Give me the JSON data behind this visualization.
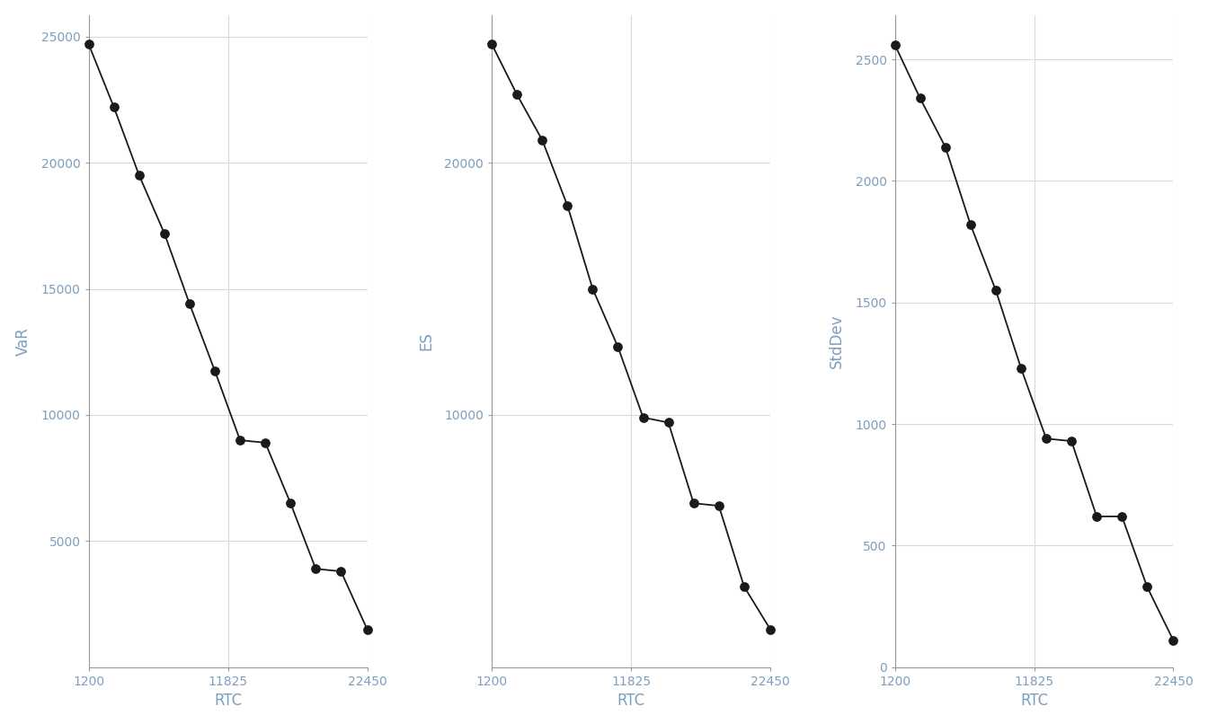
{
  "var_rtc": [
    1200,
    3125,
    5050,
    6975,
    8900,
    10825,
    12750,
    14675,
    16600,
    18525,
    20450,
    22450
  ],
  "var_y": [
    24700,
    22200,
    19500,
    17200,
    14400,
    11750,
    9000,
    8900,
    6500,
    3900,
    3800,
    1500
  ],
  "es_rtc": [
    1200,
    3125,
    5050,
    6975,
    8900,
    10825,
    12750,
    14675,
    16600,
    18525,
    20450,
    22450
  ],
  "es_y": [
    24700,
    22700,
    20900,
    18300,
    15000,
    12700,
    9900,
    9700,
    6500,
    6400,
    3200,
    1500
  ],
  "std_rtc": [
    1200,
    3125,
    5050,
    6975,
    8900,
    10825,
    12750,
    14675,
    16600,
    18525,
    20450,
    22450
  ],
  "std_y": [
    2560,
    2340,
    2140,
    1820,
    1550,
    1230,
    940,
    930,
    620,
    620,
    330,
    110
  ],
  "var_yticks": [
    5000,
    10000,
    15000,
    20000,
    25000
  ],
  "es_yticks": [
    10000,
    20000
  ],
  "std_yticks": [
    0,
    500,
    1000,
    1500,
    2000,
    2500
  ],
  "xticks": [
    1200,
    11825,
    22450
  ],
  "xlabel": "RTC",
  "ylabels": [
    "VaR",
    "ES",
    "StdDev"
  ],
  "line_color": "#1a1a1a",
  "dot_color": "#1a1a1a",
  "bg_color": "#ffffff",
  "panel_bg": "#ffffff",
  "grid_color": "#d9d9d9",
  "tick_label_color": "#7f9dbd",
  "axis_label_color": "#333333",
  "tick_fontsize": 10,
  "label_fontsize": 12
}
